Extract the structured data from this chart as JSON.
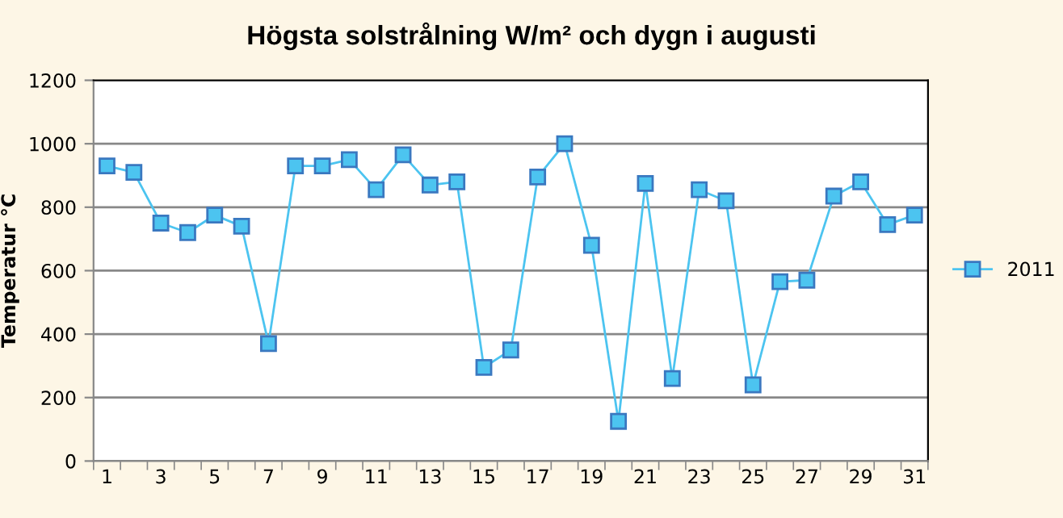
{
  "chart_data": {
    "type": "line",
    "title": "Högsta solstrålning W/m² och dygn i augusti",
    "ylabel": "Temperatur °C",
    "categories": [
      "1",
      null,
      "3",
      null,
      "5",
      null,
      "7",
      null,
      "9",
      null,
      "11",
      null,
      "13",
      null,
      "15",
      null,
      "17",
      null,
      "19",
      null,
      "21",
      null,
      "23",
      null,
      "25",
      null,
      "27",
      null,
      "29",
      null,
      "31"
    ],
    "series": [
      {
        "name": "2011",
        "color": "#4cc4f0",
        "values": [
          930,
          910,
          750,
          720,
          775,
          740,
          370,
          930,
          930,
          950,
          855,
          965,
          870,
          880,
          295,
          350,
          895,
          1000,
          680,
          125,
          875,
          260,
          855,
          820,
          240,
          565,
          570,
          835,
          880,
          745,
          775
        ]
      }
    ],
    "ylim": [
      0,
      1200
    ],
    "yticks": [
      0,
      200,
      400,
      600,
      800,
      1000,
      1200
    ],
    "grid": "y",
    "legend": "right",
    "marker": "square",
    "line_style": "solid"
  }
}
